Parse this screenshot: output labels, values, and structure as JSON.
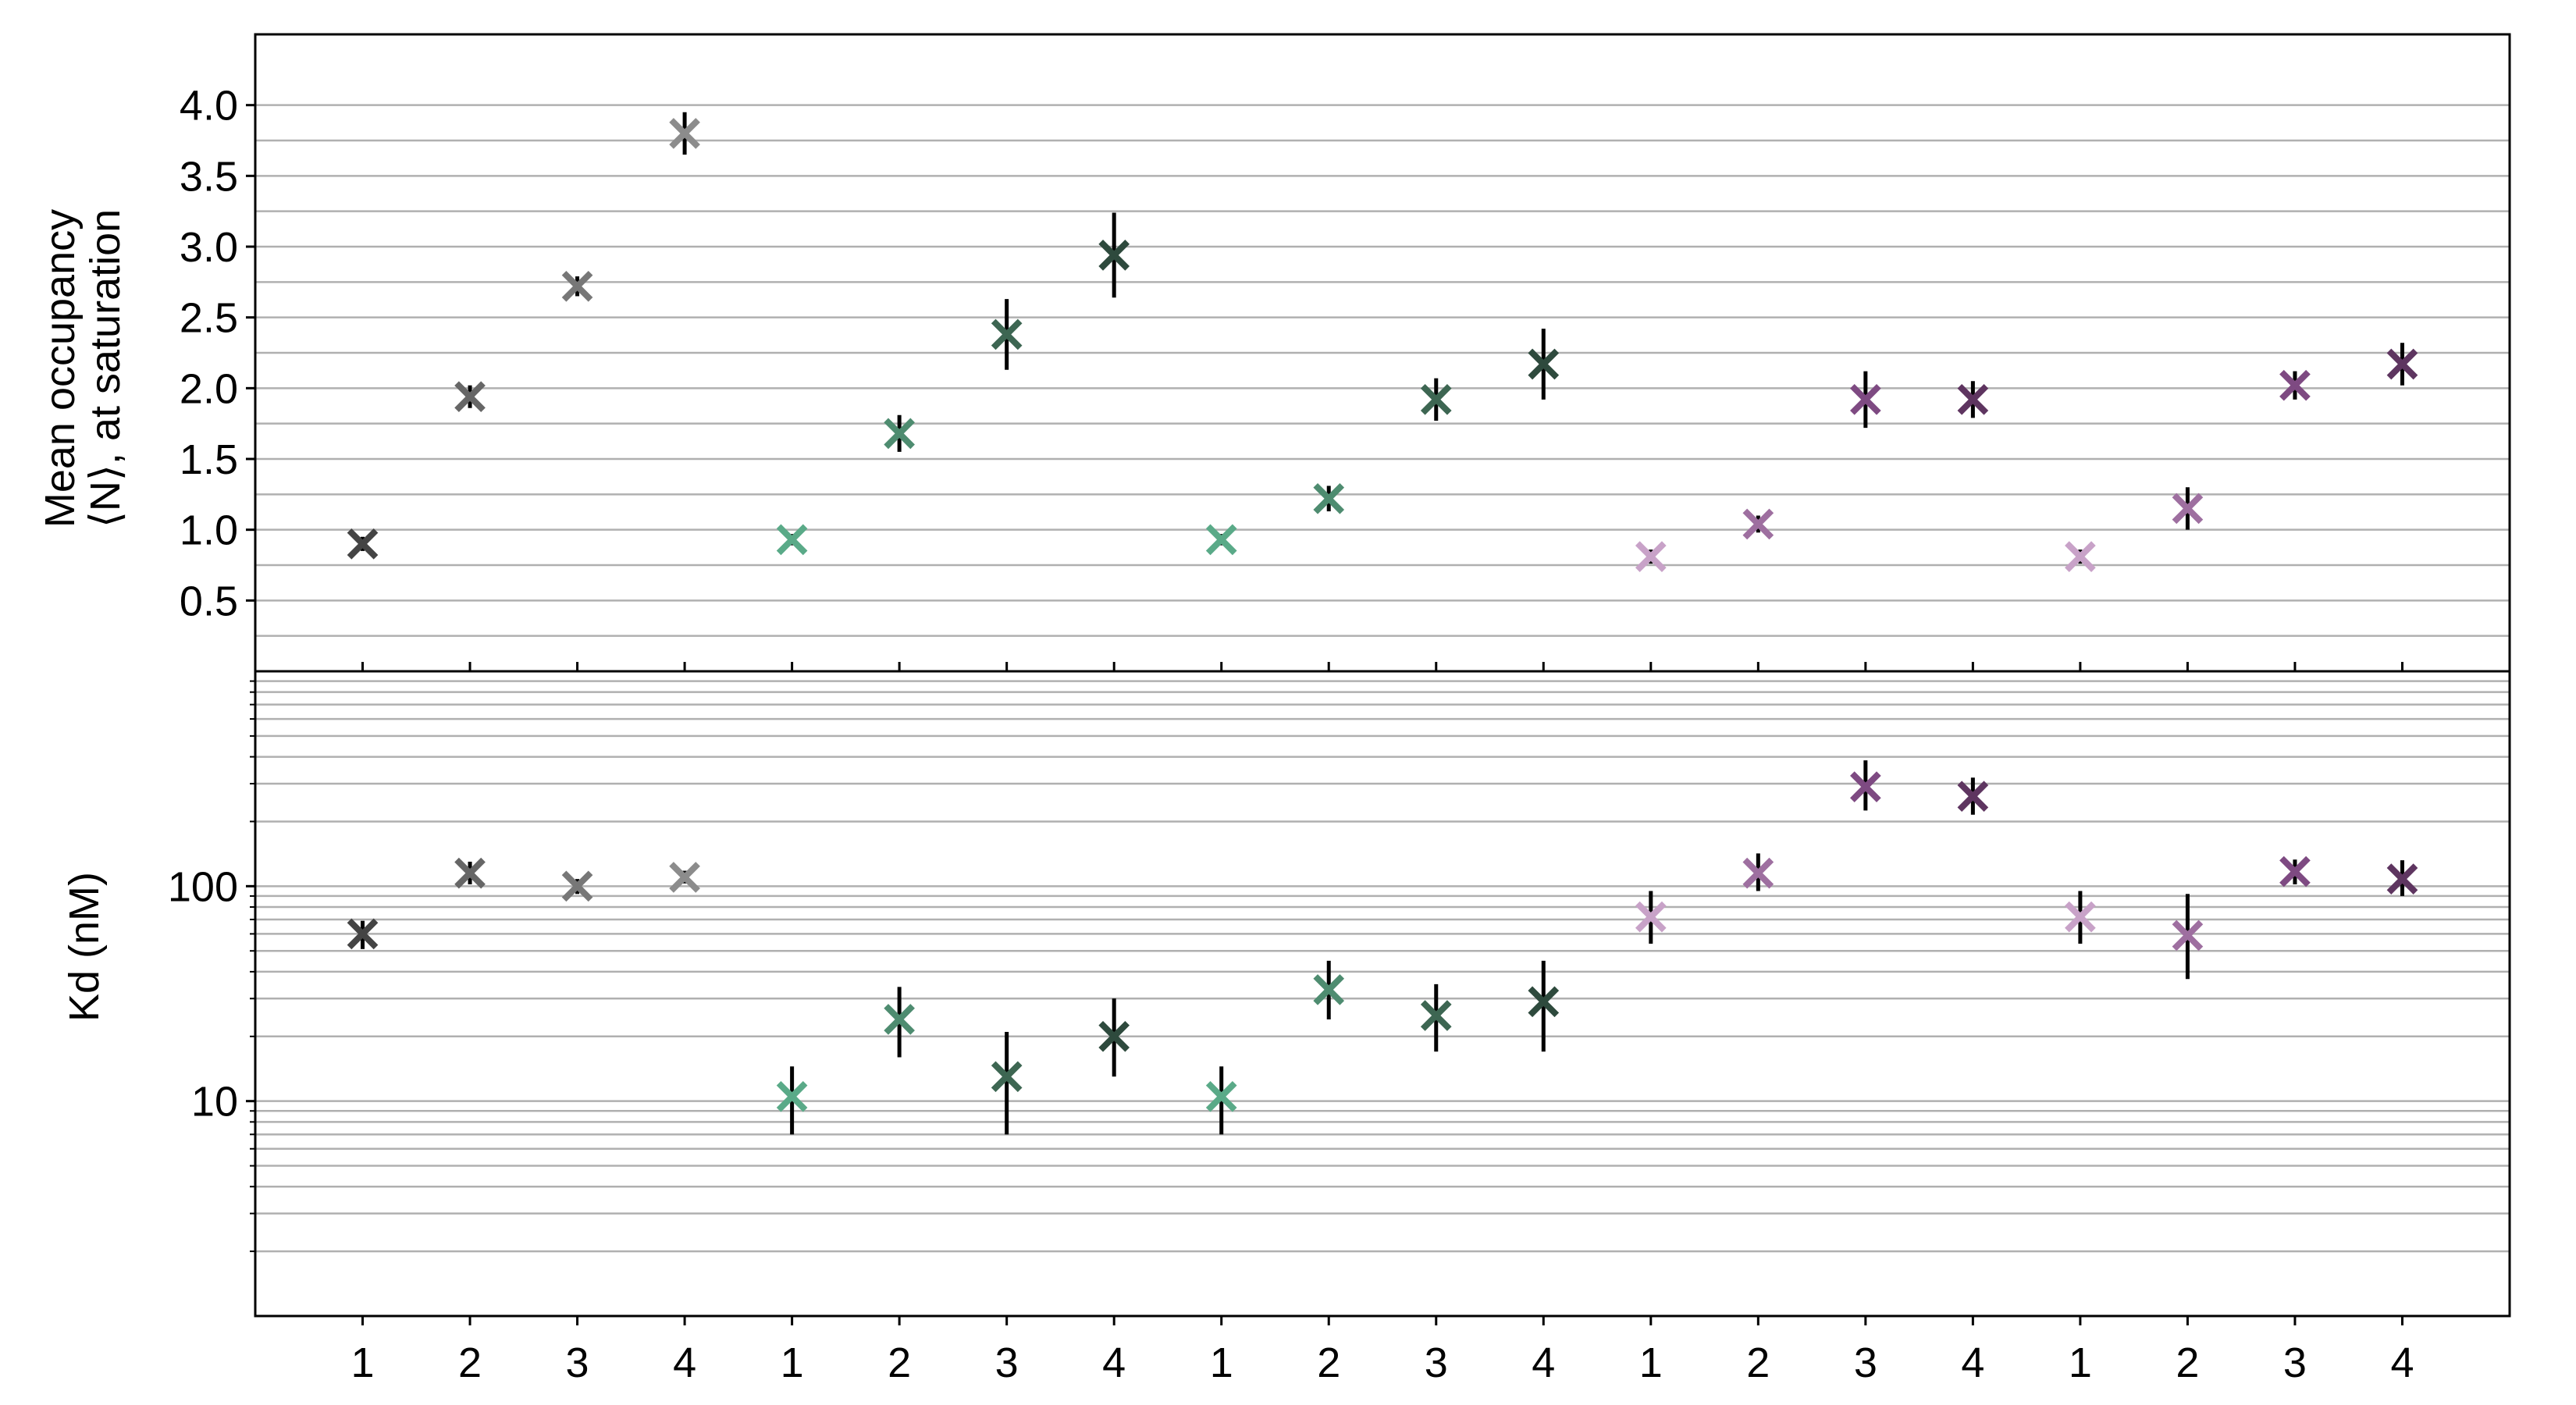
{
  "chart_data": [
    {
      "type": "scatter",
      "panel": "top",
      "ylabel_lines": [
        "Mean occupancy",
        "⟨N⟩, at saturation"
      ],
      "ylim": [
        0,
        4.5
      ],
      "yticks": [
        0.5,
        1.0,
        1.5,
        2.0,
        2.5,
        3.0,
        3.5,
        4.0
      ],
      "ytick_labels": [
        "0.5",
        "1.0",
        "1.5",
        "2.0",
        "2.5",
        "3.0",
        "3.5",
        "4.0"
      ],
      "grid": true,
      "points": [
        {
          "x": 1,
          "y": 0.9,
          "err": 0.05,
          "color": "#444444"
        },
        {
          "x": 2,
          "y": 1.94,
          "err": 0.08,
          "color": "#666666"
        },
        {
          "x": 3,
          "y": 2.72,
          "err": 0.07,
          "color": "#777777"
        },
        {
          "x": 4,
          "y": 3.8,
          "err": 0.15,
          "color": "#8c8c8c"
        },
        {
          "x": 5,
          "y": 0.93,
          "err": 0.04,
          "color": "#5aaa88"
        },
        {
          "x": 6,
          "y": 1.68,
          "err": 0.13,
          "color": "#4e8c70"
        },
        {
          "x": 7,
          "y": 2.38,
          "err": 0.25,
          "color": "#3d6652"
        },
        {
          "x": 8,
          "y": 2.94,
          "err": 0.3,
          "color": "#2e4a3d"
        },
        {
          "x": 9,
          "y": 0.93,
          "err": 0.04,
          "color": "#5aaa88"
        },
        {
          "x": 10,
          "y": 1.22,
          "err": 0.09,
          "color": "#4e8c70"
        },
        {
          "x": 11,
          "y": 1.92,
          "err": 0.15,
          "color": "#3d6652"
        },
        {
          "x": 12,
          "y": 2.17,
          "err": 0.25,
          "color": "#2e4a3d"
        },
        {
          "x": 13,
          "y": 0.81,
          "err": 0.05,
          "color": "#c8a2c8"
        },
        {
          "x": 14,
          "y": 1.04,
          "err": 0.06,
          "color": "#9e6fa0"
        },
        {
          "x": 15,
          "y": 1.92,
          "err": 0.2,
          "color": "#7e4a82"
        },
        {
          "x": 16,
          "y": 1.92,
          "err": 0.13,
          "color": "#5e3560"
        },
        {
          "x": 17,
          "y": 0.81,
          "err": 0.05,
          "color": "#c8a2c8"
        },
        {
          "x": 18,
          "y": 1.15,
          "err": 0.15,
          "color": "#9e6fa0"
        },
        {
          "x": 19,
          "y": 2.02,
          "err": 0.1,
          "color": "#7e4a82"
        },
        {
          "x": 20,
          "y": 2.17,
          "err": 0.15,
          "color": "#5e3560"
        }
      ]
    },
    {
      "type": "scatter",
      "panel": "bottom",
      "ylabel": "Kd (nM)",
      "yscale": "log",
      "ylim": [
        1,
        1000
      ],
      "yticks": [
        10,
        100
      ],
      "ytick_labels": [
        "10",
        "100"
      ],
      "grid": true,
      "points": [
        {
          "x": 1,
          "y": 60,
          "lo": 51,
          "hi": 69,
          "color": "#444444"
        },
        {
          "x": 2,
          "y": 115,
          "lo": 102,
          "hi": 130,
          "color": "#666666"
        },
        {
          "x": 3,
          "y": 100,
          "lo": 92,
          "hi": 108,
          "color": "#777777"
        },
        {
          "x": 4,
          "y": 110,
          "lo": 103,
          "hi": 118,
          "color": "#8c8c8c"
        },
        {
          "x": 5,
          "y": 10.5,
          "lo": 7.0,
          "hi": 14.5,
          "color": "#5aaa88"
        },
        {
          "x": 6,
          "y": 24,
          "lo": 16,
          "hi": 34,
          "color": "#4e8c70"
        },
        {
          "x": 7,
          "y": 13,
          "lo": 7.0,
          "hi": 21,
          "color": "#3d6652"
        },
        {
          "x": 8,
          "y": 20,
          "lo": 13,
          "hi": 30,
          "color": "#2e4a3d"
        },
        {
          "x": 9,
          "y": 10.5,
          "lo": 7.0,
          "hi": 14.5,
          "color": "#5aaa88"
        },
        {
          "x": 10,
          "y": 33,
          "lo": 24,
          "hi": 45,
          "color": "#4e8c70"
        },
        {
          "x": 11,
          "y": 25,
          "lo": 17,
          "hi": 35,
          "color": "#3d6652"
        },
        {
          "x": 12,
          "y": 29,
          "lo": 17,
          "hi": 45,
          "color": "#2e4a3d"
        },
        {
          "x": 13,
          "y": 72,
          "lo": 54,
          "hi": 95,
          "color": "#c8a2c8"
        },
        {
          "x": 14,
          "y": 115,
          "lo": 95,
          "hi": 142,
          "color": "#9e6fa0"
        },
        {
          "x": 15,
          "y": 290,
          "lo": 225,
          "hi": 385,
          "color": "#7e4a82"
        },
        {
          "x": 16,
          "y": 262,
          "lo": 215,
          "hi": 320,
          "color": "#5e3560"
        },
        {
          "x": 17,
          "y": 72,
          "lo": 54,
          "hi": 95,
          "color": "#c8a2c8"
        },
        {
          "x": 18,
          "y": 59,
          "lo": 37,
          "hi": 92,
          "color": "#9e6fa0"
        },
        {
          "x": 19,
          "y": 117,
          "lo": 102,
          "hi": 133,
          "color": "#7e4a82"
        },
        {
          "x": 20,
          "y": 108,
          "lo": 90,
          "hi": 132,
          "color": "#5e3560"
        }
      ]
    }
  ],
  "x_tick_labels": [
    "1",
    "2",
    "3",
    "4",
    "1",
    "2",
    "3",
    "4",
    "1",
    "2",
    "3",
    "4",
    "1",
    "2",
    "3",
    "4",
    "1",
    "2",
    "3",
    "4"
  ],
  "xlim": [
    0,
    21
  ]
}
